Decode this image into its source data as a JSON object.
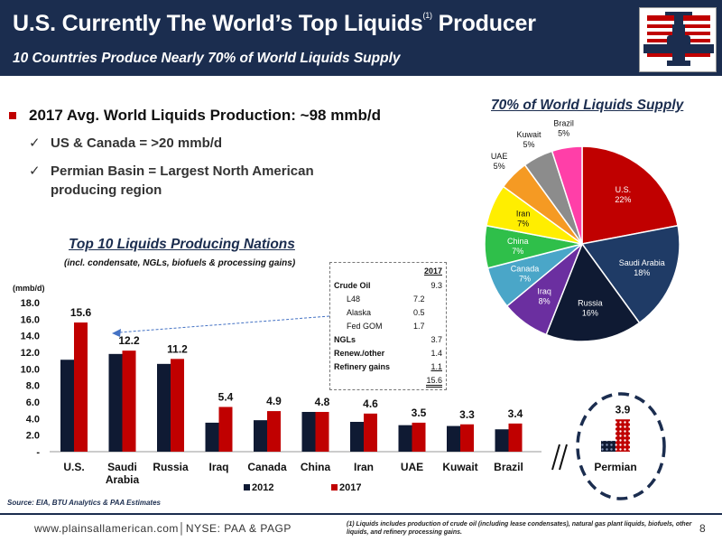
{
  "header": {
    "title": "U.S. Currently The World’s Top Liquids",
    "title_sup": "(1)",
    "title_end": " Producer",
    "subtitle": "10 Countries Produce Nearly 70% of World Liquids Supply"
  },
  "bullets": {
    "main": "2017 Avg. World Liquids Production: ~98 mmb/d",
    "sub": [
      "US & Canada =  >20 mmb/d",
      "Permian Basin = Largest North American producing region"
    ]
  },
  "pie_title": "70% of World Liquids Supply",
  "bar_title": "Top 10 Liquids Producing Nations",
  "bar_subtitle": "(incl. condensate, NGLs, biofuels & processing gains)",
  "crude_table": {
    "header": "2017",
    "rows": [
      {
        "label": "Crude Oil",
        "mid": "",
        "val": "9.3"
      },
      {
        "label": "L48",
        "mid": "7.2",
        "val": ""
      },
      {
        "label": "Alaska",
        "mid": "0.5",
        "val": ""
      },
      {
        "label": "Fed GOM",
        "mid": "1.7",
        "val": ""
      },
      {
        "label": "NGLs",
        "mid": "",
        "val": "3.7"
      },
      {
        "label": "Renew./other",
        "mid": "",
        "val": "1.4"
      },
      {
        "label": "Refinery gains",
        "mid": "",
        "val": "1.1"
      },
      {
        "label": "",
        "mid": "",
        "val": "15.6"
      }
    ]
  },
  "chart_data": [
    {
      "type": "bar",
      "ylabel": "(mmb/d)",
      "ylim": [
        0,
        18
      ],
      "yticks": [
        "-",
        "2.0",
        "4.0",
        "6.0",
        "8.0",
        "10.0",
        "12.0",
        "14.0",
        "16.0",
        "18.0"
      ],
      "categories": [
        "U.S.",
        "Saudi Arabia",
        "Russia",
        "Iraq",
        "Canada",
        "China",
        "Iran",
        "UAE",
        "Kuwait",
        "Brazil"
      ],
      "series": [
        {
          "name": "2012",
          "color": "#0f1a33",
          "values": [
            11.1,
            11.8,
            10.6,
            3.5,
            3.8,
            4.8,
            3.6,
            3.2,
            3.1,
            2.7
          ]
        },
        {
          "name": "2017",
          "color": "#c00000",
          "values": [
            15.6,
            12.2,
            11.2,
            5.4,
            4.9,
            4.8,
            4.6,
            3.5,
            3.3,
            3.4
          ]
        }
      ],
      "labels_2017": [
        "15.6",
        "12.2",
        "11.2",
        "5.4",
        "4.9",
        "4.8",
        "4.6",
        "3.5",
        "3.3",
        "3.4"
      ],
      "legend_position": "bottom"
    },
    {
      "type": "bar",
      "categories": [
        "Permian"
      ],
      "series": [
        {
          "name": "2012",
          "values": [
            1.3
          ]
        },
        {
          "name": "2017",
          "values": [
            3.9
          ]
        }
      ],
      "labels_2017": [
        "3.9"
      ]
    },
    {
      "type": "pie",
      "slices": [
        {
          "label": "U.S.",
          "pct_label": "22%",
          "value": 22,
          "color": "#c00000"
        },
        {
          "label": "Saudi Arabia",
          "pct_label": "18%",
          "value": 18,
          "color": "#1f3b66"
        },
        {
          "label": "Russia",
          "pct_label": "16%",
          "value": 16,
          "color": "#0f1a33"
        },
        {
          "label": "Iraq",
          "pct_label": "8%",
          "value": 8,
          "color": "#6b2fa0"
        },
        {
          "label": "Canada",
          "pct_label": "7%",
          "value": 7,
          "color": "#4aa6c8"
        },
        {
          "label": "China",
          "pct_label": "7%",
          "value": 7,
          "color": "#2fbf4a"
        },
        {
          "label": "Iran",
          "pct_label": "7%",
          "value": 7,
          "color": "#ffee00"
        },
        {
          "label": "UAE",
          "pct_label": "5%",
          "value": 5,
          "color": "#f59a23"
        },
        {
          "label": "Kuwait",
          "pct_label": "5%",
          "value": 5,
          "color": "#8c8c8c"
        },
        {
          "label": "Brazil",
          "pct_label": "5%",
          "value": 5,
          "color": "#ff3fa8"
        }
      ]
    }
  ],
  "source": "Source: EIA, BTU Analytics & PAA Estimates",
  "footer": {
    "url": "www.plainsallamerican.com│NYSE: PAA & PAGP",
    "footnote": "(1) Liquids includes production of crude oil (including lease condensates), natural gas plant liquids, biofuels, other liquids, and refinery processing gains.",
    "page": "8"
  }
}
